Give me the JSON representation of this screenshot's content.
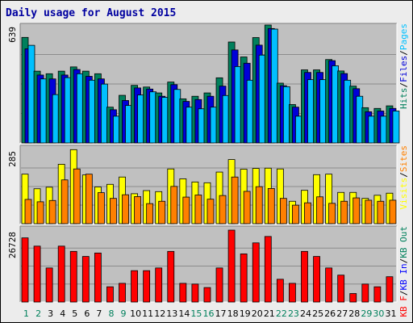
{
  "chart_data": {
    "title": "Daily usage for August 2015",
    "days": [
      "1",
      "2",
      "3",
      "4",
      "5",
      "6",
      "7",
      "8",
      "9",
      "10",
      "11",
      "12",
      "13",
      "14",
      "15",
      "16",
      "17",
      "18",
      "19",
      "20",
      "21",
      "22",
      "23",
      "24",
      "25",
      "26",
      "27",
      "28",
      "29",
      "30",
      "31"
    ],
    "weekend_days": [
      "1",
      "2",
      "8",
      "9",
      "15",
      "16",
      "22",
      "23",
      "29",
      "30"
    ],
    "colors": {
      "hits": "#00805c",
      "files": "#0000d8",
      "pages": "#00c0ff",
      "visits": "#ffff00",
      "sites": "#ff8000",
      "kb_f": "#ff0000",
      "kb_in": "#0000ff",
      "kb_out": "#00805c",
      "panel": "#c0c0c0",
      "weekday_label": "#000000",
      "weekend_label": "#00805c"
    },
    "panels": [
      {
        "type": "bar",
        "ymax_label": "639",
        "ylim": [
          0,
          639
        ],
        "legend": [
          {
            "label": "Hits",
            "color": "#00805c"
          },
          {
            "label": "/",
            "color": "#000000"
          },
          {
            "label": "Files",
            "color": "#0000d8"
          },
          {
            "label": "/",
            "color": "#000000"
          },
          {
            "label": "Pages",
            "color": "#00c0ff"
          }
        ],
        "series": [
          {
            "name": "Hits",
            "color": "#00805c",
            "values": [
              572,
              389,
              375,
              389,
              412,
              389,
              375,
              194,
              258,
              312,
              303,
              271,
              330,
              239,
              253,
              271,
              353,
              547,
              466,
              571,
              639,
              324,
              208,
              396,
              396,
              452,
              390,
              308,
              191,
              187,
              201
            ]
          },
          {
            "name": "Files",
            "color": "#0000d8",
            "values": [
              510,
              368,
              347,
              368,
              398,
              361,
              347,
              180,
              230,
              298,
              292,
              253,
              316,
              225,
              235,
              253,
              308,
              504,
              432,
              530,
              620,
              310,
              194,
              382,
              382,
              446,
              376,
              294,
              169,
              173,
              187
            ]
          },
          {
            "name": "Pages",
            "color": "#00c0ff",
            "values": [
              529,
              347,
              262,
              354,
              375,
              340,
              319,
              145,
              203,
              260,
              277,
              247,
              290,
              194,
              185,
              194,
              257,
              414,
              340,
              476,
              617,
              305,
              145,
              343,
              343,
              418,
              340,
              253,
              145,
              145,
              173
            ]
          }
        ]
      },
      {
        "type": "bar",
        "ymax_label": "285",
        "ylim": [
          0,
          285
        ],
        "legend": [
          {
            "label": "Visits",
            "color": "#ffff00"
          },
          {
            "label": "/",
            "color": "#000000"
          },
          {
            "label": "Sites",
            "color": "#ff8000"
          }
        ],
        "series": [
          {
            "name": "Visits",
            "color": "#ffff00",
            "values": [
              190,
              134,
              140,
              228,
              284,
              187,
              141,
              151,
              179,
              115,
              127,
              123,
              210,
              172,
              160,
              157,
              198,
              246,
              209,
              212,
              213,
              210,
              86,
              128,
              188,
              190,
              120,
              120,
              97,
              109,
              117
            ]
          },
          {
            "name": "Sites",
            "color": "#ff8000",
            "values": [
              93,
              84,
              89,
              168,
              210,
              190,
              119,
              97,
              111,
              104,
              77,
              86,
              143,
              102,
              110,
              94,
              108,
              179,
              124,
              142,
              135,
              97,
              71,
              80,
              103,
              78,
              86,
              99,
              90,
              86,
              90
            ]
          }
        ]
      },
      {
        "type": "bar",
        "ymax_label": "26728",
        "ylim": [
          0,
          26728
        ],
        "legend": [
          {
            "label": "KB F",
            "color": "#ff0000"
          },
          {
            "label": "/",
            "color": "#000000"
          },
          {
            "label": "KB In",
            "color": "#0000ff"
          },
          {
            "label": "/",
            "color": "#000000"
          },
          {
            "label": "KB Out",
            "color": "#00805c"
          }
        ],
        "series": [
          {
            "name": "KB F",
            "color": "#ff0000",
            "values": [
              23850,
              20780,
              12660,
              20780,
              18820,
              16940,
              18220,
              5660,
              6940,
              11660,
              11660,
              12660,
              18820,
              6940,
              6660,
              5380,
              12660,
              26728,
              17900,
              21990,
              24370,
              8460,
              6940,
              18820,
              16940,
              12660,
              10000,
              3150,
              6660,
              5660,
              9400
            ]
          }
        ]
      }
    ]
  }
}
